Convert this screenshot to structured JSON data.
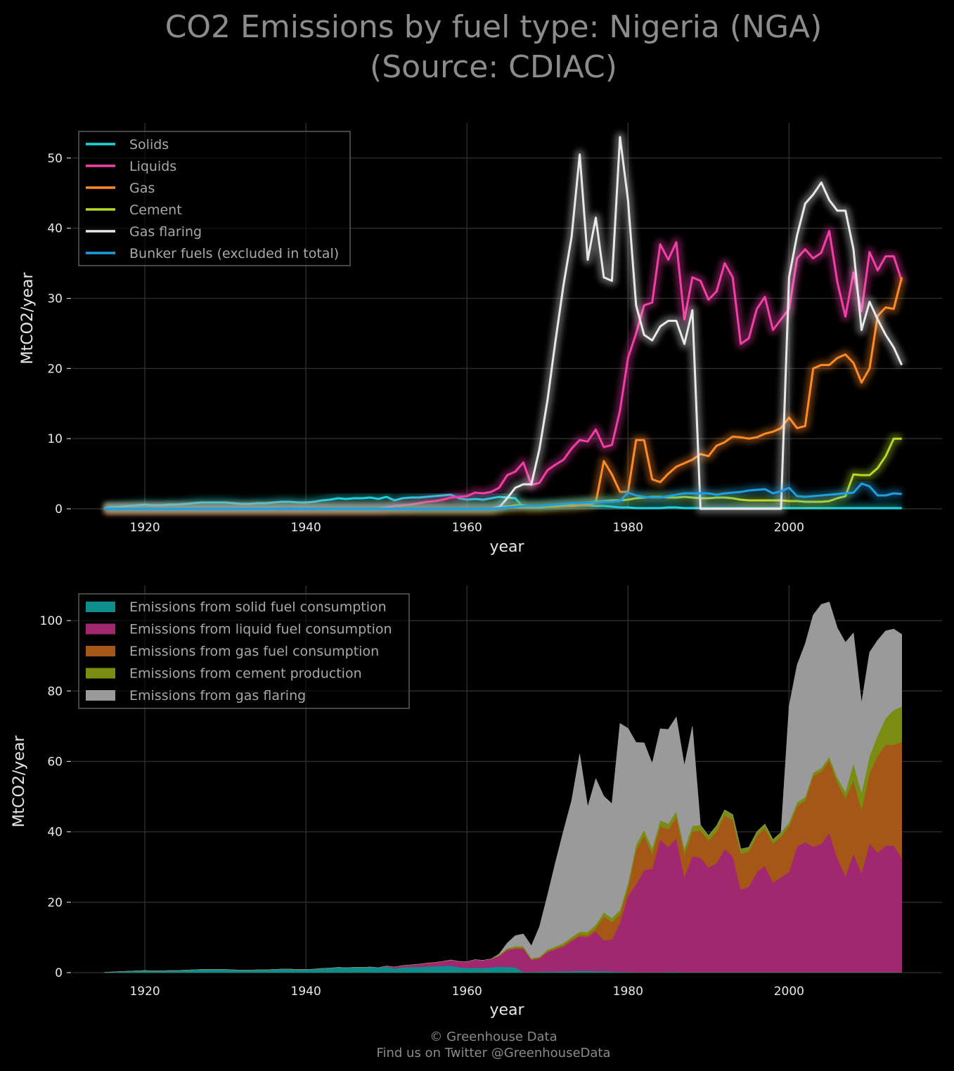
{
  "figure": {
    "title_line1": "CO2 Emissions by fuel type: Nigeria (NGA)",
    "title_line2": "(Source: CDIAC)",
    "footer_line1": "© Greenhouse Data",
    "footer_line2": "Find us on Twitter @GreenhouseData",
    "background_color": "#000000"
  },
  "chart_data": [
    {
      "type": "line",
      "xlabel": "year",
      "ylabel": "MtCO2/year",
      "xlim": [
        1911,
        2019
      ],
      "ylim": [
        0,
        55
      ],
      "xticks": [
        1920,
        1940,
        1960,
        1980,
        2000
      ],
      "yticks": [
        0,
        10,
        20,
        30,
        40,
        50
      ],
      "grid": true,
      "legend_position": "top-left",
      "x": [
        1915,
        1916,
        1917,
        1918,
        1919,
        1920,
        1921,
        1922,
        1923,
        1924,
        1925,
        1926,
        1927,
        1928,
        1929,
        1930,
        1931,
        1932,
        1933,
        1934,
        1935,
        1936,
        1937,
        1938,
        1939,
        1940,
        1941,
        1942,
        1943,
        1944,
        1945,
        1946,
        1947,
        1948,
        1949,
        1950,
        1951,
        1952,
        1953,
        1954,
        1955,
        1956,
        1957,
        1958,
        1959,
        1960,
        1961,
        1962,
        1963,
        1964,
        1965,
        1966,
        1967,
        1968,
        1969,
        1970,
        1971,
        1972,
        1973,
        1974,
        1975,
        1976,
        1977,
        1978,
        1979,
        1980,
        1981,
        1982,
        1983,
        1984,
        1985,
        1986,
        1987,
        1988,
        1989,
        1990,
        1991,
        1992,
        1993,
        1994,
        1995,
        1996,
        1997,
        1998,
        1999,
        2000,
        2001,
        2002,
        2003,
        2004,
        2005,
        2006,
        2007,
        2008,
        2009,
        2010,
        2011,
        2012,
        2013,
        2014
      ],
      "series": [
        {
          "name": "Solids",
          "color": "#1ad3de",
          "values": [
            0.1,
            0.2,
            0.3,
            0.4,
            0.5,
            0.6,
            0.5,
            0.5,
            0.6,
            0.6,
            0.7,
            0.8,
            0.9,
            0.9,
            0.9,
            0.9,
            0.8,
            0.7,
            0.7,
            0.8,
            0.8,
            0.9,
            1.0,
            1.0,
            0.9,
            0.9,
            1.0,
            1.2,
            1.3,
            1.5,
            1.4,
            1.5,
            1.5,
            1.6,
            1.4,
            1.7,
            1.2,
            1.5,
            1.6,
            1.6,
            1.7,
            1.8,
            1.9,
            2.0,
            1.5,
            1.3,
            1.4,
            1.3,
            1.5,
            1.7,
            1.6,
            1.5,
            0.2,
            0.2,
            0.3,
            0.3,
            0.3,
            0.4,
            0.4,
            0.5,
            0.5,
            0.4,
            0.4,
            0.3,
            0.2,
            0.2,
            0.1,
            0.1,
            0.1,
            0.1,
            0.2,
            0.2,
            0.1,
            0.1,
            0.1,
            0.1,
            0.1,
            0.1,
            0.1,
            0.1,
            0.1,
            0.1,
            0.1,
            0.1,
            0.1,
            0.1,
            0.1,
            0.1,
            0.1,
            0.1,
            0.1,
            0.1,
            0.1,
            0.1,
            0.1,
            0.1,
            0.1,
            0.1,
            0.1,
            0.1
          ]
        },
        {
          "name": "Liquids",
          "color": "#f23fa5",
          "values": [
            0,
            0,
            0,
            0,
            0,
            0,
            0,
            0,
            0,
            0,
            0,
            0,
            0,
            0,
            0,
            0,
            0,
            0,
            0,
            0,
            0,
            0,
            0,
            0,
            0,
            0,
            0,
            0,
            0,
            0,
            0,
            0,
            0,
            0,
            0,
            0.2,
            0.4,
            0.5,
            0.6,
            0.8,
            1.0,
            1.1,
            1.3,
            1.6,
            1.7,
            1.8,
            2.3,
            2.2,
            2.4,
            3.0,
            4.8,
            5.3,
            6.6,
            3.4,
            3.7,
            5.5,
            6.3,
            7.0,
            8.6,
            9.8,
            9.6,
            11.3,
            8.8,
            9.1,
            14.0,
            21.5,
            25.0,
            29.0,
            29.4,
            37.7,
            35.5,
            38.0,
            27.0,
            33.0,
            32.5,
            29.8,
            31.0,
            35.0,
            33.0,
            23.5,
            24.3,
            28.5,
            30.2,
            25.5,
            27.0,
            28.5,
            35.7,
            37.0,
            35.7,
            36.5,
            39.6,
            32.3,
            27.4,
            33.7,
            28.2,
            36.6,
            34.0,
            36.0,
            36.0,
            32.5
          ]
        },
        {
          "name": "Gas",
          "color": "#ff8a26",
          "values": [
            0,
            0,
            0,
            0,
            0,
            0,
            0,
            0,
            0,
            0,
            0,
            0,
            0,
            0,
            0,
            0,
            0,
            0,
            0,
            0,
            0,
            0,
            0,
            0,
            0,
            0,
            0,
            0,
            0,
            0,
            0,
            0,
            0,
            0,
            0,
            0,
            0,
            0,
            0,
            0,
            0,
            0,
            0,
            0,
            0,
            0,
            0,
            0,
            0,
            0.1,
            0.2,
            0.2,
            0.2,
            0.2,
            0.2,
            0.3,
            0.3,
            0.4,
            0.4,
            0.5,
            0.6,
            0.9,
            6.8,
            4.9,
            2.4,
            2.4,
            9.8,
            9.8,
            4.2,
            3.8,
            5.0,
            6.0,
            6.5,
            7.0,
            7.8,
            7.5,
            9.0,
            9.5,
            10.3,
            10.2,
            10.0,
            10.2,
            10.7,
            11.0,
            11.5,
            13.0,
            11.5,
            11.8,
            20.0,
            20.5,
            20.5,
            21.5,
            22.0,
            20.8,
            18.0,
            20.0,
            27.5,
            28.7,
            28.5,
            33.0
          ]
        },
        {
          "name": "Cement",
          "color": "#b7d929",
          "values": [
            0,
            0,
            0,
            0,
            0,
            0,
            0,
            0,
            0,
            0,
            0,
            0,
            0,
            0,
            0,
            0,
            0,
            0,
            0,
            0,
            0,
            0,
            0,
            0,
            0,
            0,
            0,
            0,
            0,
            0,
            0,
            0,
            0,
            0,
            0,
            0,
            0,
            0,
            0,
            0,
            0,
            0,
            0,
            0,
            0,
            0,
            0,
            0,
            0,
            0.3,
            0.3,
            0.5,
            0.5,
            0.3,
            0.3,
            0.4,
            0.5,
            0.6,
            0.7,
            0.8,
            0.9,
            1.0,
            1.1,
            1.2,
            1.2,
            1.3,
            1.5,
            1.6,
            1.7,
            1.7,
            1.6,
            1.6,
            1.7,
            1.6,
            1.5,
            1.5,
            1.6,
            1.6,
            1.5,
            1.3,
            1.2,
            1.2,
            1.2,
            1.2,
            1.2,
            1.1,
            1.1,
            1.0,
            1.0,
            1.0,
            1.1,
            1.5,
            1.8,
            4.9,
            4.8,
            4.8,
            5.8,
            7.5,
            10.0,
            10.0
          ]
        },
        {
          "name": "Gas flaring",
          "color": "#e8e8e8",
          "values": [
            0,
            0,
            0,
            0,
            0,
            0,
            0,
            0,
            0,
            0,
            0,
            0,
            0,
            0,
            0,
            0,
            0,
            0,
            0,
            0,
            0,
            0,
            0,
            0,
            0,
            0,
            0,
            0,
            0,
            0,
            0,
            0,
            0,
            0,
            0,
            0,
            0,
            0,
            0,
            0,
            0,
            0,
            0,
            0,
            0,
            0,
            0,
            0,
            0,
            0.2,
            1.5,
            3.0,
            3.5,
            3.5,
            8.5,
            15.5,
            24.0,
            32.0,
            38.8,
            50.5,
            35.5,
            41.5,
            33.0,
            32.5,
            53.0,
            44.0,
            29.0,
            24.8,
            24.0,
            26.0,
            26.8,
            26.8,
            23.5,
            28.3,
            0,
            0,
            0,
            0,
            0,
            0,
            0,
            0,
            0,
            0,
            0,
            33.0,
            39.0,
            43.5,
            44.8,
            46.5,
            44.0,
            42.5,
            42.5,
            37.0,
            25.5,
            29.5,
            27.0,
            24.8,
            23.0,
            20.5
          ]
        },
        {
          "name": "Bunker fuels (excluded in total)",
          "color": "#1f9fe0",
          "values": [
            0,
            0,
            0,
            0,
            0,
            0,
            0,
            0,
            0,
            0,
            0,
            0,
            0,
            0,
            0,
            0,
            0,
            0,
            0,
            0,
            0,
            0,
            0,
            0,
            0,
            0,
            0,
            0,
            0,
            0,
            0,
            0,
            0,
            0,
            0,
            0,
            0,
            0,
            0,
            0,
            0,
            0,
            0,
            0,
            0,
            0,
            0,
            0,
            0,
            0.1,
            0.2,
            0.3,
            0.4,
            0.4,
            0.4,
            0.5,
            0.6,
            0.7,
            0.8,
            0.8,
            0.9,
            0.9,
            1.0,
            1.0,
            1.1,
            2.3,
            1.9,
            1.7,
            1.6,
            1.6,
            1.8,
            2.0,
            2.2,
            2.2,
            2.2,
            2.2,
            2.0,
            2.2,
            2.3,
            2.4,
            2.6,
            2.7,
            2.8,
            2.2,
            2.5,
            3.0,
            1.8,
            1.7,
            1.8,
            1.9,
            2.0,
            2.1,
            2.2,
            2.3,
            3.6,
            3.2,
            1.9,
            1.9,
            2.2,
            2.1
          ]
        }
      ]
    },
    {
      "type": "area",
      "stacked": true,
      "xlabel": "year",
      "ylabel": "MtCO2/year",
      "xlim": [
        1911,
        2019
      ],
      "ylim": [
        0,
        110
      ],
      "xticks": [
        1920,
        1940,
        1960,
        1980,
        2000
      ],
      "yticks": [
        0,
        20,
        40,
        60,
        80,
        100
      ],
      "grid": true,
      "legend_position": "top-left",
      "series_order": [
        {
          "name": "Emissions from solid fuel consumption",
          "source": "Solids",
          "color": "#0f8c8c"
        },
        {
          "name": "Emissions from liquid fuel consumption",
          "source": "Liquids",
          "color": "#a12870"
        },
        {
          "name": "Emissions from gas fuel consumption",
          "source": "Gas",
          "color": "#a55718"
        },
        {
          "name": "Emissions from cement production",
          "source": "Cement",
          "color": "#7a8c12"
        },
        {
          "name": "Emissions from gas flaring",
          "source": "Gas flaring",
          "color": "#9a9a9a"
        }
      ]
    }
  ]
}
